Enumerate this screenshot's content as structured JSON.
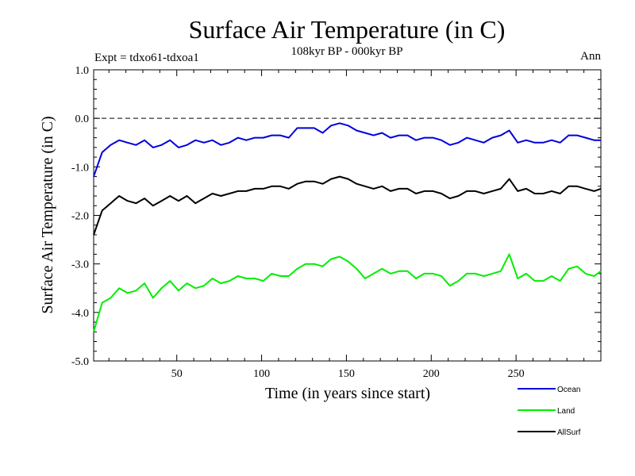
{
  "chart_data": {
    "type": "line",
    "title": "Surface Air Temperature (in C)",
    "subtitle": "108kyr BP - 000kyr BP",
    "experiment_label": "Expt = tdxo61-tdxoa1",
    "period_label": "Ann",
    "xlabel": "Time (in years since start)",
    "ylabel": "Surface Air Temperature (in C)",
    "xlim": [
      1,
      300
    ],
    "ylim": [
      -5.0,
      1.0
    ],
    "xticks": [
      50,
      100,
      150,
      200,
      250
    ],
    "xtick_labels": [
      "50",
      "100",
      "150",
      "200",
      "250"
    ],
    "yticks": [
      -5.0,
      -4.0,
      -3.0,
      -2.0,
      -1.0,
      0.0,
      1.0
    ],
    "ytick_labels": [
      "-5.0",
      "-4.0",
      "-3.0",
      "-2.0",
      "-1.0",
      "0.0",
      "1.0"
    ],
    "reference_line": 0.0,
    "grid": false,
    "legend_position": "bottom-right",
    "series": [
      {
        "name": "Ocean",
        "color": "#0000dd",
        "x": [
          1,
          6,
          11,
          16,
          21,
          26,
          31,
          36,
          41,
          46,
          51,
          56,
          61,
          66,
          71,
          76,
          81,
          86,
          91,
          96,
          101,
          106,
          111,
          116,
          121,
          126,
          131,
          136,
          141,
          146,
          151,
          156,
          161,
          166,
          171,
          176,
          181,
          186,
          191,
          196,
          201,
          206,
          211,
          216,
          221,
          226,
          231,
          236,
          241,
          246,
          251,
          256,
          261,
          266,
          271,
          276,
          281,
          286,
          291,
          296,
          300
        ],
        "values": [
          -1.2,
          -0.7,
          -0.55,
          -0.45,
          -0.5,
          -0.55,
          -0.45,
          -0.6,
          -0.55,
          -0.45,
          -0.6,
          -0.55,
          -0.45,
          -0.5,
          -0.45,
          -0.55,
          -0.5,
          -0.4,
          -0.45,
          -0.4,
          -0.4,
          -0.35,
          -0.35,
          -0.4,
          -0.2,
          -0.2,
          -0.2,
          -0.3,
          -0.15,
          -0.1,
          -0.15,
          -0.25,
          -0.3,
          -0.35,
          -0.3,
          -0.4,
          -0.35,
          -0.35,
          -0.45,
          -0.4,
          -0.4,
          -0.45,
          -0.55,
          -0.5,
          -0.4,
          -0.45,
          -0.5,
          -0.4,
          -0.35,
          -0.25,
          -0.5,
          -0.45,
          -0.5,
          -0.5,
          -0.45,
          -0.5,
          -0.35,
          -0.35,
          -0.4,
          -0.45,
          -0.45
        ]
      },
      {
        "name": "AllSurf",
        "color": "#000000",
        "x": [
          1,
          6,
          11,
          16,
          21,
          26,
          31,
          36,
          41,
          46,
          51,
          56,
          61,
          66,
          71,
          76,
          81,
          86,
          91,
          96,
          101,
          106,
          111,
          116,
          121,
          126,
          131,
          136,
          141,
          146,
          151,
          156,
          161,
          166,
          171,
          176,
          181,
          186,
          191,
          196,
          201,
          206,
          211,
          216,
          221,
          226,
          231,
          236,
          241,
          246,
          251,
          256,
          261,
          266,
          271,
          276,
          281,
          286,
          291,
          296,
          300
        ],
        "values": [
          -2.4,
          -1.9,
          -1.75,
          -1.6,
          -1.7,
          -1.75,
          -1.65,
          -1.8,
          -1.7,
          -1.6,
          -1.7,
          -1.6,
          -1.75,
          -1.65,
          -1.55,
          -1.6,
          -1.55,
          -1.5,
          -1.5,
          -1.45,
          -1.45,
          -1.4,
          -1.4,
          -1.45,
          -1.35,
          -1.3,
          -1.3,
          -1.35,
          -1.25,
          -1.2,
          -1.25,
          -1.35,
          -1.4,
          -1.45,
          -1.4,
          -1.5,
          -1.45,
          -1.45,
          -1.55,
          -1.5,
          -1.5,
          -1.55,
          -1.65,
          -1.6,
          -1.5,
          -1.5,
          -1.55,
          -1.5,
          -1.45,
          -1.25,
          -1.5,
          -1.45,
          -1.55,
          -1.55,
          -1.5,
          -1.55,
          -1.4,
          -1.4,
          -1.45,
          -1.5,
          -1.45
        ]
      },
      {
        "name": "Land",
        "color": "#00ee00",
        "x": [
          1,
          6,
          11,
          16,
          21,
          26,
          31,
          36,
          41,
          46,
          51,
          56,
          61,
          66,
          71,
          76,
          81,
          86,
          91,
          96,
          101,
          106,
          111,
          116,
          121,
          126,
          131,
          136,
          141,
          146,
          151,
          156,
          161,
          166,
          171,
          176,
          181,
          186,
          191,
          196,
          201,
          206,
          211,
          216,
          221,
          226,
          231,
          236,
          241,
          246,
          251,
          256,
          261,
          266,
          271,
          276,
          281,
          286,
          291,
          296,
          300
        ],
        "values": [
          -4.4,
          -3.8,
          -3.7,
          -3.5,
          -3.6,
          -3.55,
          -3.4,
          -3.7,
          -3.5,
          -3.35,
          -3.55,
          -3.4,
          -3.5,
          -3.45,
          -3.3,
          -3.4,
          -3.35,
          -3.25,
          -3.3,
          -3.3,
          -3.35,
          -3.2,
          -3.25,
          -3.25,
          -3.1,
          -3.0,
          -3.0,
          -3.05,
          -2.9,
          -2.85,
          -2.95,
          -3.1,
          -3.3,
          -3.2,
          -3.1,
          -3.2,
          -3.15,
          -3.15,
          -3.3,
          -3.2,
          -3.2,
          -3.25,
          -3.45,
          -3.35,
          -3.2,
          -3.2,
          -3.25,
          -3.2,
          -3.15,
          -2.8,
          -3.3,
          -3.2,
          -3.35,
          -3.35,
          -3.25,
          -3.35,
          -3.1,
          -3.05,
          -3.2,
          -3.25,
          -3.15
        ]
      }
    ]
  }
}
